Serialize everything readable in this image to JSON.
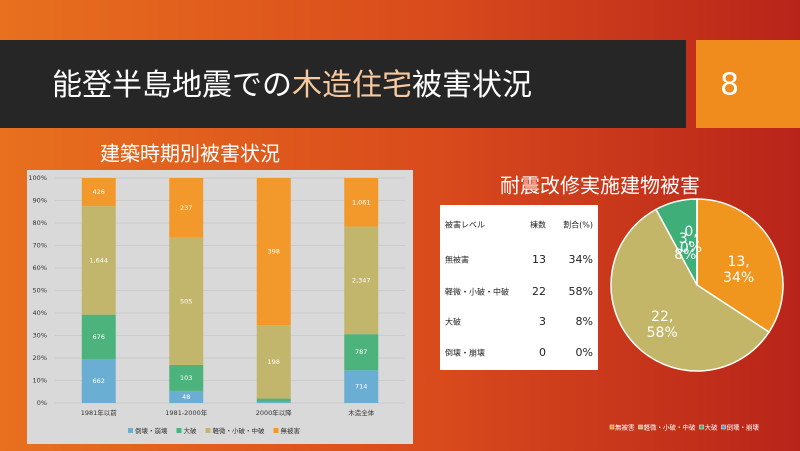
{
  "slide": {
    "title": {
      "lead": "能登半島地震での",
      "highlight": "木造住宅",
      "tail": "被害状況"
    },
    "page_number": 8
  },
  "chart_data": [
    {
      "type": "bar",
      "stacking": "percent",
      "title": "建築時期別被害状況",
      "categories": [
        "1981年以前",
        "1981-2000年",
        "2000年以降",
        "木造全体"
      ],
      "series": [
        {
          "name": "倒壊・崩壊",
          "color": "#6aaed4",
          "values": [
            662,
            48,
            4,
            714
          ],
          "value_labels": [
            "662",
            "48",
            null,
            "714"
          ]
        },
        {
          "name": "大破",
          "color": "#4db37c",
          "values": [
            676,
            103,
            8,
            787
          ],
          "value_labels": [
            "676",
            "103",
            null,
            "787"
          ]
        },
        {
          "name": "軽微・小破・中破",
          "color": "#c2b66c",
          "values": [
            1644,
            505,
            198,
            2347
          ],
          "value_labels": [
            "1,644",
            "505",
            "198",
            "2,347"
          ]
        },
        {
          "name": "無被害",
          "color": "#f3992b",
          "values": [
            426,
            237,
            398,
            1061
          ],
          "value_labels": [
            "426",
            "237",
            "398",
            "1,061"
          ]
        }
      ],
      "ylim": [
        0,
        100
      ],
      "yticks": [
        {
          "value": 0,
          "label": "0%"
        },
        {
          "value": 10,
          "label": "10%"
        },
        {
          "value": 20,
          "label": "20%"
        },
        {
          "value": 30,
          "label": "30%"
        },
        {
          "value": 40,
          "label": "40%"
        },
        {
          "value": 50,
          "label": "50%"
        },
        {
          "value": 60,
          "label": "60%"
        },
        {
          "value": 70,
          "label": "70%"
        },
        {
          "value": 80,
          "label": "80%"
        },
        {
          "value": 90,
          "label": "90%"
        },
        {
          "value": 100,
          "label": "100%"
        }
      ],
      "grid": true,
      "legend": "bottom"
    },
    {
      "type": "pie",
      "title": "耐震改修実施建物被害",
      "categories": [
        "無被害",
        "軽微・小破・中破",
        "大破",
        "倒壊・崩壊"
      ],
      "values": [
        13,
        22,
        3,
        0
      ],
      "value_labels": [
        "13,\n34%",
        "22,\n58%",
        "3,\n8%",
        "0,\n0%"
      ],
      "colors": [
        "#f0961e",
        "#c4b668",
        "#3fae78",
        "#5b9bd5"
      ],
      "legend": "bottom"
    }
  ],
  "table": {
    "header": [
      "被害レベル",
      "棟数",
      "割合(%)"
    ],
    "rows": [
      [
        "無被害",
        13,
        "34%"
      ],
      [
        "軽微・小破・中破",
        22,
        "58%"
      ],
      [
        "大破",
        3,
        "8%"
      ],
      [
        "倒壊・崩壊",
        0,
        "0%"
      ]
    ]
  }
}
